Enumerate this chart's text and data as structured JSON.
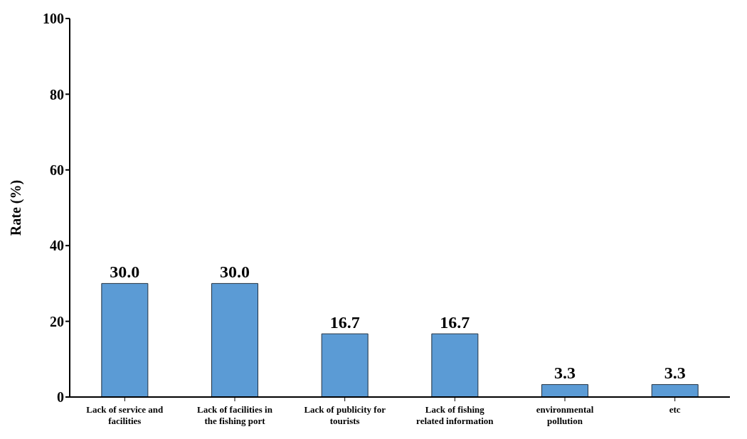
{
  "chart_data": {
    "type": "bar",
    "ylabel": "Rate (%)",
    "categories": [
      "Lack of service and facilities",
      "Lack of facilities in the fishing port",
      "Lack of publicity for tourists",
      "Lack of fishing related information",
      "environmental pollution",
      "etc"
    ],
    "values": [
      30.0,
      30.0,
      16.7,
      16.7,
      3.3,
      3.3
    ],
    "color": "#5b9bd5",
    "value_labels": [
      "30.0",
      "30.0",
      "16.7",
      "16.7",
      "3.3",
      "3.3"
    ],
    "ylim": [
      0,
      100
    ],
    "yticks": [
      0,
      20,
      40,
      60,
      80,
      100
    ],
    "grid": false
  }
}
